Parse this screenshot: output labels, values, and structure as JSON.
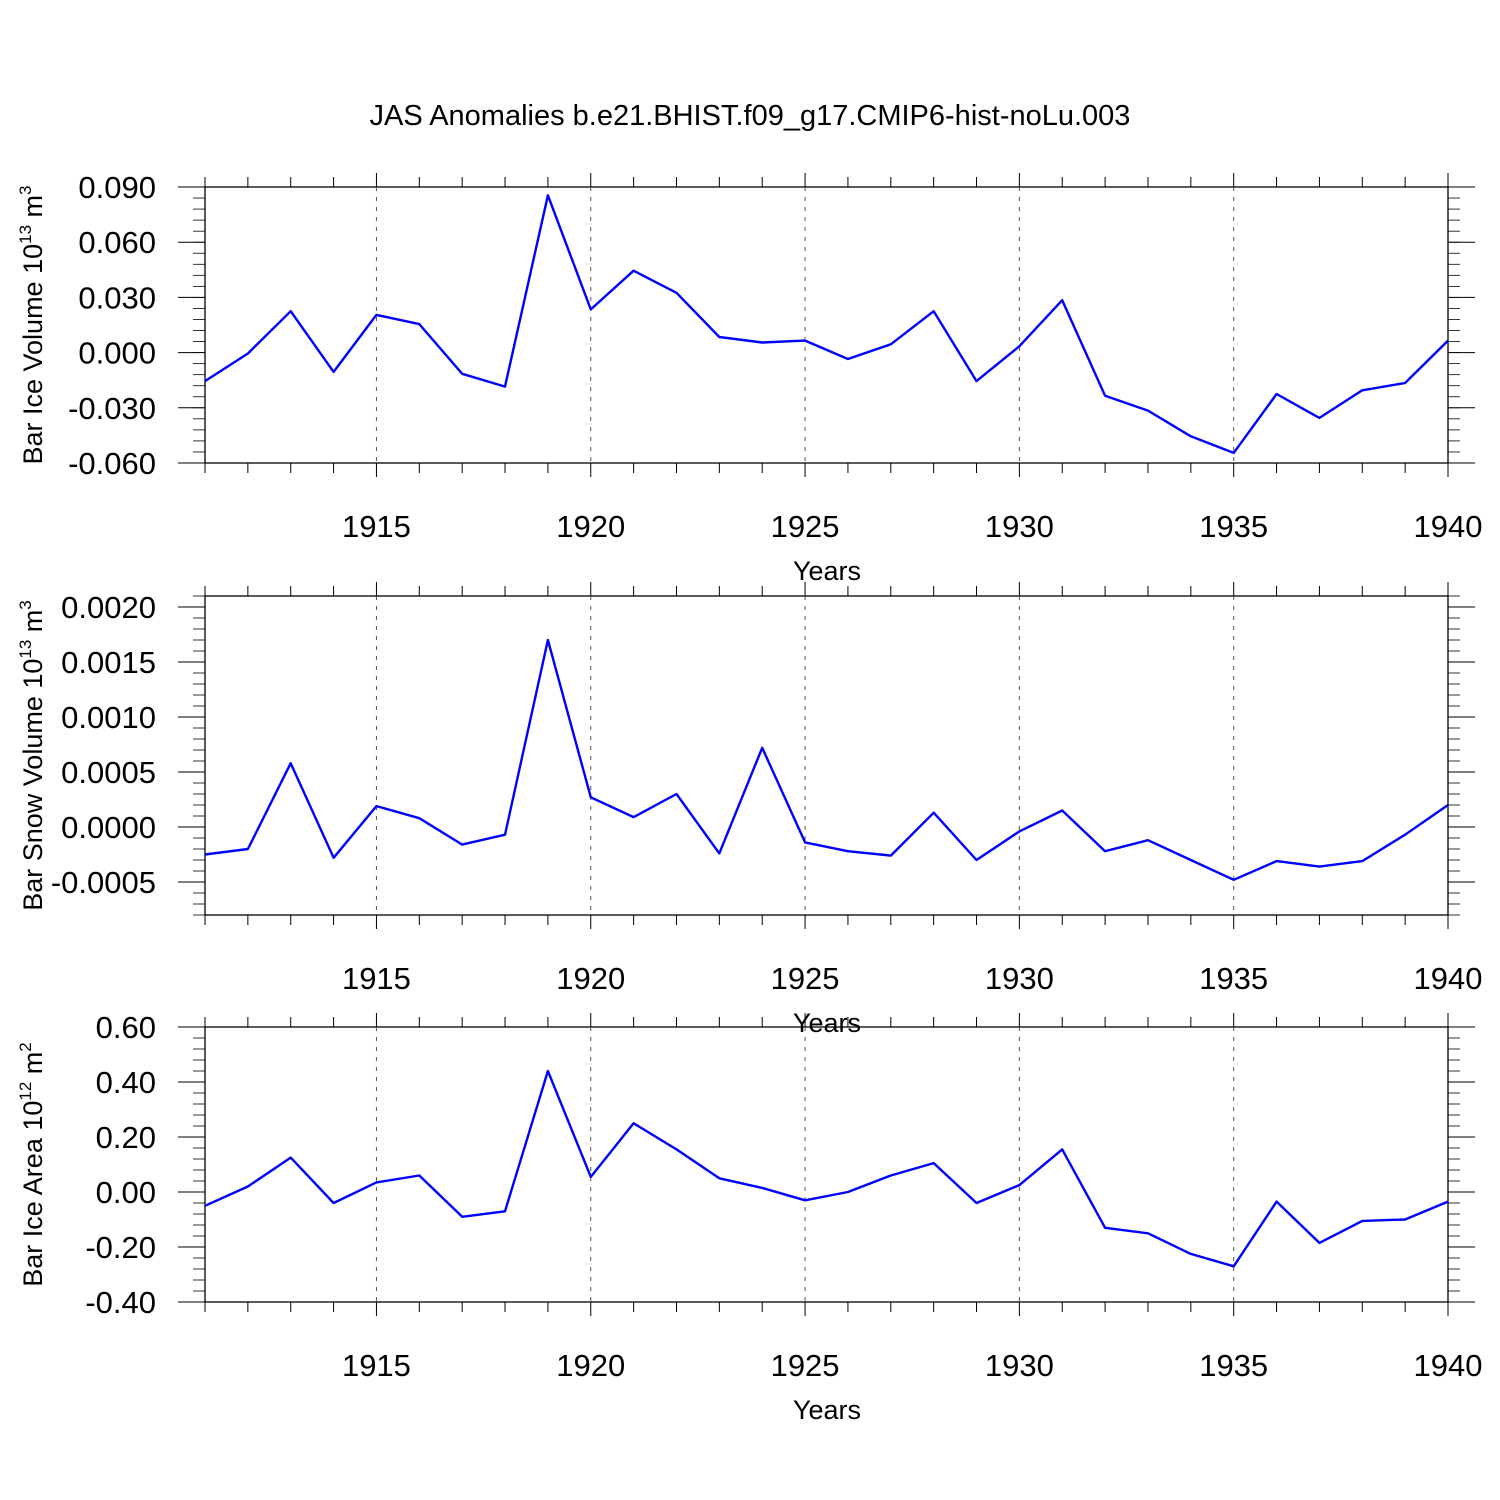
{
  "title": "JAS Anomalies b.e21.BHIST.f09_g17.CMIP6-hist-noLu.003",
  "colors": {
    "line": "#0000ff",
    "axis": "#000000",
    "grid": "#555555"
  },
  "chart_data": [
    {
      "type": "line",
      "ylabel": {
        "prefix": "Bar Ice Volume 10",
        "exp": "13",
        "unit": " m",
        "unit_exp": "3"
      },
      "xlabel": "Years",
      "xlim": [
        1911,
        1940
      ],
      "ylim": [
        -0.06,
        0.09
      ],
      "yticks": [
        -0.06,
        -0.03,
        0.0,
        0.03,
        0.06,
        0.09
      ],
      "ytick_labels": [
        "-0.060",
        "-0.030",
        "0.000",
        "0.030",
        "0.060",
        "0.090"
      ],
      "xticks": [
        1915,
        1920,
        1925,
        1930,
        1935,
        1940
      ],
      "grid_x": [
        1915,
        1920,
        1925,
        1930,
        1935
      ],
      "x": [
        1911,
        1912,
        1913,
        1914,
        1915,
        1916,
        1917,
        1918,
        1919,
        1920,
        1921,
        1922,
        1923,
        1924,
        1925,
        1926,
        1927,
        1928,
        1929,
        1930,
        1931,
        1932,
        1933,
        1934,
        1935,
        1936,
        1937,
        1938,
        1939,
        1940
      ],
      "series": [
        {
          "values": [
            -0.0155,
            -0.0005,
            0.0225,
            -0.0105,
            0.0205,
            0.0155,
            -0.0115,
            -0.0185,
            0.0855,
            0.0235,
            0.0445,
            0.0325,
            0.0085,
            0.0055,
            0.0065,
            -0.0035,
            0.0045,
            0.0225,
            -0.0155,
            0.0035,
            0.0285,
            -0.0235,
            -0.0315,
            -0.0455,
            -0.0545,
            -0.0225,
            -0.0355,
            -0.0205,
            -0.0165,
            0.0065
          ]
        }
      ]
    },
    {
      "type": "line",
      "ylabel": {
        "prefix": "Bar Snow Volume 10",
        "exp": "13",
        "unit": " m",
        "unit_exp": "3"
      },
      "xlabel": "Years",
      "xlim": [
        1911,
        1940
      ],
      "ylim": [
        -0.0008,
        0.0021
      ],
      "yticks": [
        -0.0005,
        0.0,
        0.0005,
        0.001,
        0.0015,
        0.002
      ],
      "ytick_labels": [
        "-0.0005",
        "0.0000",
        "0.0005",
        "0.0010",
        "0.0015",
        "0.0020"
      ],
      "xticks": [
        1915,
        1920,
        1925,
        1930,
        1935,
        1940
      ],
      "grid_x": [
        1915,
        1920,
        1925,
        1930,
        1935
      ],
      "x": [
        1911,
        1912,
        1913,
        1914,
        1915,
        1916,
        1917,
        1918,
        1919,
        1920,
        1921,
        1922,
        1923,
        1924,
        1925,
        1926,
        1927,
        1928,
        1929,
        1930,
        1931,
        1932,
        1933,
        1934,
        1935,
        1936,
        1937,
        1938,
        1939,
        1940
      ],
      "series": [
        {
          "values": [
            -0.00025,
            -0.0002,
            0.00058,
            -0.00028,
            0.00019,
            8e-05,
            -0.00016,
            -7e-05,
            0.0017,
            0.00027,
            9e-05,
            0.0003,
            -0.00024,
            0.00072,
            -0.00014,
            -0.00022,
            -0.00026,
            0.00013,
            -0.0003,
            -4e-05,
            0.00015,
            -0.00022,
            -0.00012,
            -0.0003,
            -0.00048,
            -0.00031,
            -0.00036,
            -0.00031,
            -7e-05,
            0.0002
          ]
        }
      ]
    },
    {
      "type": "line",
      "ylabel": {
        "prefix": "Bar Ice Area 10",
        "exp": "12",
        "unit": " m",
        "unit_exp": "2"
      },
      "xlabel": "Years",
      "xlim": [
        1911,
        1940
      ],
      "ylim": [
        -0.4,
        0.6
      ],
      "yticks": [
        -0.4,
        -0.2,
        0.0,
        0.2,
        0.4,
        0.6
      ],
      "ytick_labels": [
        "-0.40",
        "-0.20",
        "0.00",
        "0.20",
        "0.40",
        "0.60"
      ],
      "xticks": [
        1915,
        1920,
        1925,
        1930,
        1935,
        1940
      ],
      "grid_x": [
        1915,
        1920,
        1925,
        1930,
        1935
      ],
      "x": [
        1911,
        1912,
        1913,
        1914,
        1915,
        1916,
        1917,
        1918,
        1919,
        1920,
        1921,
        1922,
        1923,
        1924,
        1925,
        1926,
        1927,
        1928,
        1929,
        1930,
        1931,
        1932,
        1933,
        1934,
        1935,
        1936,
        1937,
        1938,
        1939,
        1940
      ],
      "series": [
        {
          "values": [
            -0.05,
            0.02,
            0.125,
            -0.04,
            0.035,
            0.06,
            -0.09,
            -0.07,
            0.44,
            0.055,
            0.25,
            0.155,
            0.05,
            0.015,
            -0.03,
            0.0,
            0.06,
            0.105,
            -0.04,
            0.025,
            0.155,
            -0.13,
            -0.15,
            -0.225,
            -0.27,
            -0.035,
            -0.185,
            -0.105,
            -0.1,
            -0.035
          ]
        }
      ]
    }
  ]
}
